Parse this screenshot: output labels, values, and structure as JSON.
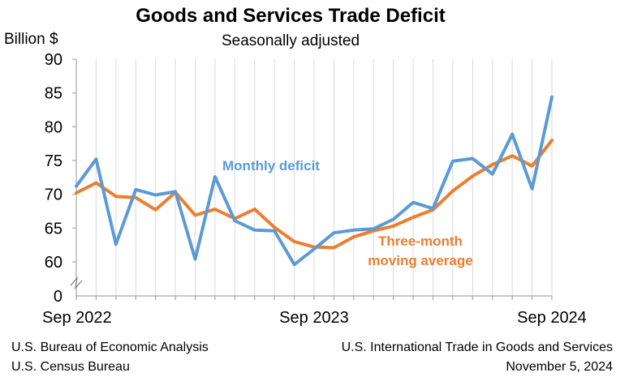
{
  "chart_data": {
    "type": "line",
    "title": "Goods and Services Trade Deficit",
    "subtitle": "Seasonally adjusted",
    "ylabel": "Billion $",
    "ylim": [
      0,
      90
    ],
    "axis_break": true,
    "yticks": [
      0,
      60,
      65,
      70,
      75,
      80,
      85,
      90
    ],
    "xtick_labels": [
      "Sep 2022",
      "Sep 2023",
      "Sep 2024"
    ],
    "xtick_label_indices": [
      0,
      12,
      24
    ],
    "x": [
      "Sep 2022",
      "Oct 2022",
      "Nov 2022",
      "Dec 2022",
      "Jan 2023",
      "Feb 2023",
      "Mar 2023",
      "Apr 2023",
      "May 2023",
      "Jun 2023",
      "Jul 2023",
      "Aug 2023",
      "Sep 2023",
      "Oct 2023",
      "Nov 2023",
      "Dec 2023",
      "Jan 2024",
      "Feb 2024",
      "Mar 2024",
      "Apr 2024",
      "May 2024",
      "Jun 2024",
      "Jul 2024",
      "Aug 2024",
      "Sep 2024"
    ],
    "grid": "vertical",
    "series": [
      {
        "name": "Monthly deficit",
        "color": "#5b9bd5",
        "values": [
          71.2,
          75.2,
          62.6,
          70.7,
          69.9,
          70.4,
          60.4,
          72.6,
          66.1,
          64.7,
          64.6,
          59.6,
          61.9,
          64.3,
          64.7,
          64.9,
          66.3,
          68.8,
          67.9,
          74.9,
          75.3,
          73.0,
          78.9,
          70.8,
          84.4
        ]
      },
      {
        "name": "Three-month moving average",
        "color": "#ed7d31",
        "values": [
          70.2,
          71.7,
          69.7,
          69.5,
          67.7,
          70.3,
          66.9,
          67.8,
          66.4,
          67.8,
          65.1,
          63.0,
          62.2,
          62.1,
          63.7,
          64.6,
          65.3,
          66.6,
          67.7,
          70.5,
          72.7,
          74.4,
          75.7,
          74.2,
          78.0
        ]
      }
    ]
  },
  "labels": {
    "monthly": "Monthly deficit",
    "moving_line1": "Three-month",
    "moving_line2": "moving average"
  },
  "footer": {
    "left_line1": "U.S. Bureau of Economic Analysis",
    "left_line2": "U.S. Census Bureau",
    "right_line1": "U.S. International Trade in Goods and Services",
    "right_line2": "November 5, 2024"
  }
}
